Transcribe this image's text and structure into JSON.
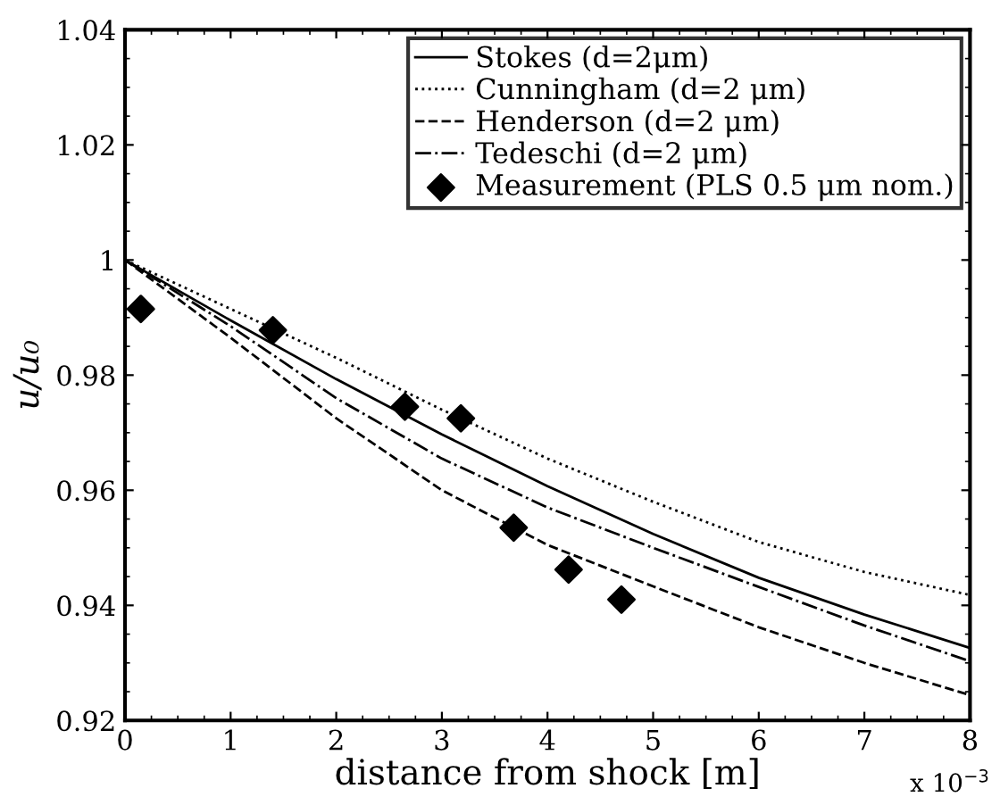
{
  "chart_data": {
    "type": "line",
    "xlabel": "distance from shock [m]",
    "ylabel": "u/u₀",
    "xlim": [
      0,
      8
    ],
    "xticks": [
      0,
      1,
      2,
      3,
      4,
      5,
      6,
      7,
      8
    ],
    "ylim": [
      0.92,
      1.04
    ],
    "yticks": [
      0.92,
      0.94,
      0.96,
      0.98,
      1,
      1.02,
      1.04
    ],
    "grid": false,
    "legend": "top right",
    "annotations": [
      "x 10$^{−3}$"
    ],
    "series": [
      {
        "name": "Stokes (d=2μm)",
        "color": "#000000",
        "line_style": "solid",
        "x": [
          0,
          1,
          2,
          3,
          4,
          5,
          6,
          7,
          8
        ],
        "values": [
          1,
          0.9895,
          0.9793,
          0.9697,
          0.9607,
          0.9524,
          0.9448,
          0.9384,
          0.9326
        ]
      },
      {
        "name": "Cunningham (d=2 μm)",
        "color": "#000000",
        "line_style": "dotted",
        "x": [
          0,
          1,
          2,
          3,
          4,
          5,
          6,
          7,
          8
        ],
        "values": [
          1,
          0.9915,
          0.983,
          0.974,
          0.9655,
          0.958,
          0.951,
          0.9458,
          0.9418
        ]
      },
      {
        "name": "Henderson (d=2 μm)",
        "color": "#000000",
        "line_style": "dashed",
        "x": [
          0,
          1,
          2,
          3,
          4,
          5,
          6,
          7,
          8
        ],
        "values": [
          1,
          0.9865,
          0.9725,
          0.96,
          0.9505,
          0.9433,
          0.9362,
          0.93,
          0.9244
        ]
      },
      {
        "name": "Tedeschi (d=2 μm)",
        "color": "#000000",
        "line_style": "dashdot",
        "x": [
          0,
          1,
          2,
          3,
          4,
          5,
          6,
          7,
          8
        ],
        "values": [
          1,
          0.9885,
          0.976,
          0.9655,
          0.957,
          0.95,
          0.9432,
          0.9365,
          0.9303
        ]
      },
      {
        "name": "Measurement (PLS 0.5 μm nom.)",
        "type": "scatter",
        "marker": "diamond",
        "color": "#000000",
        "x": [
          0.15,
          1.4,
          2.65,
          3.18,
          3.68,
          4.2,
          4.7
        ],
        "values": [
          0.9915,
          0.9878,
          0.9745,
          0.9725,
          0.9535,
          0.9462,
          0.941
        ]
      }
    ]
  }
}
